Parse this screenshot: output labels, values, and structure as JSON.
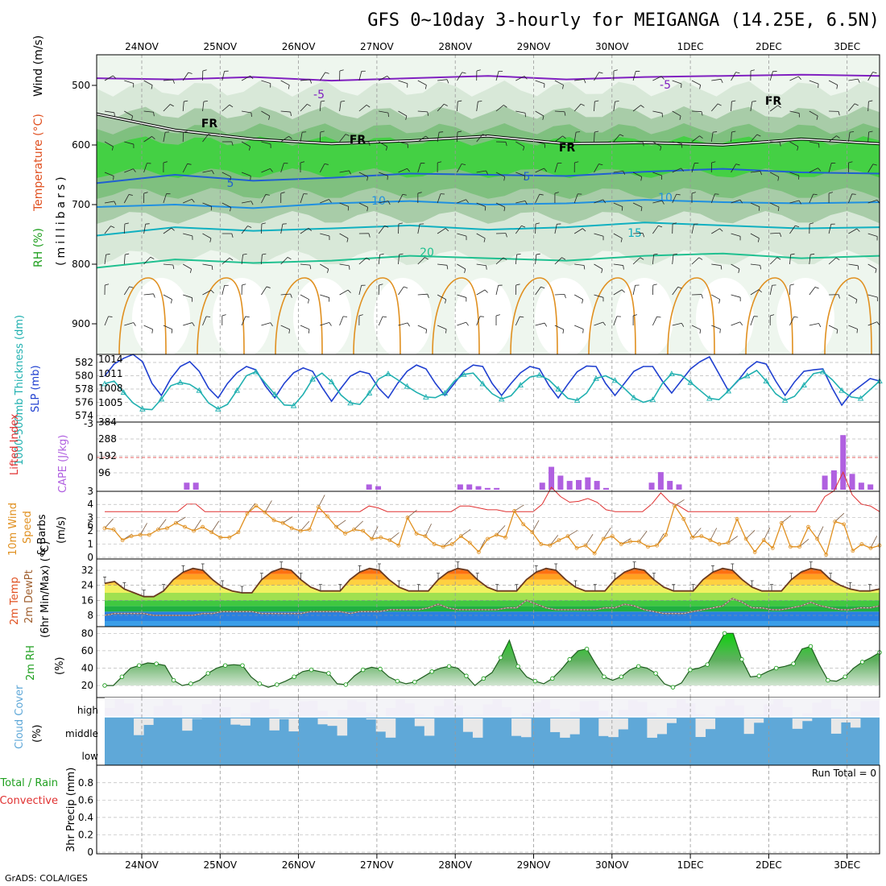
{
  "title": "GFS 0~10day 3-hourly for MEIGANGA (14.25E, 6.5N)",
  "credit": "GrADS: COLA/IGES",
  "date_labels": [
    "24NOV",
    "25NOV",
    "26NOV",
    "27NOV",
    "28NOV",
    "29NOV",
    "30NOV",
    "1DEC",
    "2DEC",
    "3DEC"
  ],
  "colors": {
    "temp": "#e05020",
    "rh": "#20a020",
    "thickness": "#20b0b0",
    "slp": "#2040d0",
    "cape": "#b060e0",
    "wind": "#e09020",
    "cloud": "#5fa8d8",
    "precip_conv": "#e03030"
  },
  "chart_data": [
    {
      "type": "heatmap",
      "name": "upper-air",
      "ylabel_parts": [
        "RH (%)",
        "Temperature (°C)",
        "Wind (m/s)"
      ],
      "ylabel_units": "(millibars)",
      "y_ticks": [
        500,
        600,
        700,
        800,
        900
      ],
      "contour_labels": [
        "-5",
        "-5",
        "5",
        "5",
        "10",
        "10",
        "15",
        "20",
        "FR",
        "FR",
        "FR",
        "FR"
      ],
      "isotherms": [
        {
          "label": "-5",
          "pressure": [
            488,
            490,
            486,
            492,
            488,
            484,
            490,
            486,
            484,
            482,
            484
          ]
        },
        {
          "label": "5",
          "pressure": [
            664,
            650,
            660,
            655,
            648,
            650,
            652,
            645,
            640,
            646,
            648
          ]
        },
        {
          "label": "10",
          "pressure": [
            704,
            700,
            706,
            698,
            694,
            700,
            698,
            692,
            696,
            698,
            696
          ]
        },
        {
          "label": "15",
          "pressure": [
            752,
            738,
            744,
            740,
            735,
            742,
            738,
            730,
            735,
            740,
            738
          ]
        },
        {
          "label": "20",
          "pressure": [
            806,
            792,
            798,
            794,
            786,
            790,
            794,
            786,
            782,
            790,
            786
          ]
        }
      ],
      "freezing_level": [
        548,
        575,
        590,
        598,
        593,
        585,
        598,
        596,
        600,
        590,
        598
      ]
    },
    {
      "type": "line",
      "name": "thickness-slp",
      "ylabel_left": "1000-500mb Thickness (dm)",
      "ylabel_right": "SLP (mb)",
      "y_ticks_left": [
        574,
        576,
        578,
        580,
        582
      ],
      "y_ticks_right": [
        1005,
        1008,
        1011,
        1014
      ],
      "series": [
        {
          "name": "SLP (mb)",
          "values": [
            1010.5,
            1013,
            1014.2,
            1015,
            1013.5,
            1009,
            1006.5,
            1010,
            1012.5,
            1013.5,
            1011.5,
            1008,
            1006,
            1009,
            1011.2,
            1012.5,
            1011.8,
            1008.5,
            1006,
            1009,
            1011.2,
            1012.2,
            1011.5,
            1008.2,
            1005.3,
            1008,
            1010.5,
            1011.5,
            1011,
            1008,
            1006,
            1009,
            1011.5,
            1012.8,
            1012,
            1009,
            1006.5,
            1009,
            1011.5,
            1012.8,
            1012.5,
            1009,
            1006.5,
            1009,
            1011.2,
            1012.5,
            1012,
            1008.6,
            1006,
            1008.8,
            1011.4,
            1012.6,
            1012.5,
            1009,
            1006.5,
            1009,
            1011.5,
            1012.5,
            1012.5,
            1009.5,
            1007,
            1009.5,
            1012,
            1013.5,
            1014.5,
            1011,
            1007.5,
            1009.5,
            1012,
            1013.5,
            1013,
            1009.5,
            1006.5,
            1009.3,
            1011.5,
            1011.8,
            1012,
            1008,
            1004.5,
            1007,
            1008.5,
            1010,
            1009.5
          ]
        },
        {
          "name": "1000-500mb Thickness (dm)",
          "values": [
            578.8,
            579.2,
            577.5,
            575.9,
            575,
            574.9,
            576.5,
            578.5,
            579,
            578.7,
            577.8,
            575.9,
            575,
            575.7,
            577.8,
            580,
            580.6,
            578.9,
            577.2,
            575.6,
            575.5,
            577.2,
            579.5,
            580.4,
            579.1,
            577.1,
            575.9,
            575.7,
            577.4,
            579.5,
            580.3,
            579.4,
            578.4,
            577.5,
            576.8,
            576.7,
            577.4,
            579.2,
            580.2,
            580.4,
            578.8,
            577.3,
            576.5,
            577,
            578.6,
            579.8,
            580.1,
            579.4,
            578,
            576.6,
            576.3,
            577.4,
            579.6,
            580,
            579.3,
            578.1,
            576.7,
            576,
            576.4,
            578.8,
            580.3,
            580.1,
            579,
            577.8,
            576.6,
            576.4,
            577.7,
            579.3,
            580,
            580.8,
            579.2,
            577.3,
            576.3,
            576.9,
            578.6,
            580.3,
            580.6,
            579.4,
            577.8,
            576.8,
            576.6,
            577.9,
            579.2
          ]
        }
      ]
    },
    {
      "type": "bar",
      "name": "lifted-cape",
      "ylabel_left": "Lifted Index",
      "ylabel_right": "CAPE (J/kg)",
      "y_ticks_left": [
        -3,
        0,
        3,
        6
      ],
      "y_ticks_right": [
        96,
        192,
        288,
        384
      ],
      "series": [
        {
          "name": "CAPE (J/kg)",
          "values": [
            0,
            0,
            0,
            0,
            0,
            0,
            0,
            0,
            0,
            40,
            40,
            0,
            0,
            0,
            0,
            0,
            0,
            0,
            0,
            0,
            0,
            0,
            0,
            0,
            0,
            0,
            0,
            0,
            0,
            30,
            20,
            0,
            0,
            0,
            0,
            0,
            0,
            0,
            0,
            30,
            30,
            20,
            10,
            10,
            0,
            0,
            0,
            0,
            40,
            130,
            80,
            50,
            55,
            70,
            50,
            10,
            0,
            0,
            0,
            0,
            40,
            100,
            50,
            30,
            0,
            0,
            0,
            0,
            0,
            0,
            0,
            0,
            0,
            0,
            0,
            0,
            0,
            0,
            0,
            80,
            110,
            310,
            90,
            40,
            30,
            0
          ]
        }
      ]
    },
    {
      "type": "line",
      "name": "wind-10m",
      "ylabel": "10m Wind Speed & Barbs (m/s)",
      "y_ticks": [
        0,
        1,
        2,
        3,
        4
      ],
      "ylim": [
        0,
        4.5
      ],
      "series": [
        {
          "name": "10m Wind Speed",
          "values": [
            2.2,
            2.1,
            1.3,
            1.6,
            1.7,
            1.7,
            2.1,
            2.2,
            2.6,
            2.3,
            2.0,
            2.3,
            1.9,
            1.5,
            1.5,
            1.9,
            3.3,
            3.9,
            3.4,
            2.8,
            2.6,
            2.2,
            2.0,
            2.1,
            3.8,
            3.1,
            2.3,
            1.8,
            2.1,
            2.0,
            1.4,
            1.5,
            1.3,
            0.9,
            3.0,
            1.8,
            1.6,
            1.0,
            0.8,
            1.0,
            1.6,
            1.1,
            0.4,
            1.4,
            1.7,
            1.5,
            3.5,
            2.5,
            1.9,
            1.0,
            0.9,
            1.3,
            1.6,
            0.7,
            0.9,
            0.3,
            1.4,
            1.6,
            1.0,
            1.2,
            1.2,
            0.8,
            0.9,
            1.7,
            3.9,
            2.9,
            1.5,
            1.6,
            1.3,
            1.0,
            1.1,
            2.9,
            1.4,
            0.4,
            1.3,
            0.7,
            2.6,
            0.8,
            0.8,
            2.3,
            1.4,
            0.2,
            2.7,
            2.5,
            0.5,
            1.0,
            0.7,
            0.9
          ]
        }
      ]
    },
    {
      "type": "area",
      "name": "temp-dewpoint",
      "ylabel_parts": [
        "2m Temp",
        "2m DewPt",
        "(6hr Min/Max) (°C)"
      ],
      "y_ticks": [
        8,
        16,
        24,
        32
      ],
      "series": [
        {
          "name": "2m Temp",
          "values": [
            25,
            26,
            22,
            20,
            18,
            18,
            21,
            27,
            31,
            33,
            32,
            27,
            23,
            21,
            20,
            20,
            27,
            31,
            33,
            32,
            27,
            23,
            21,
            21,
            21,
            27,
            31,
            33,
            32,
            27,
            23,
            21,
            21,
            21,
            27,
            31,
            33,
            32,
            27,
            23,
            21,
            21,
            21,
            27,
            31,
            33,
            32,
            27,
            23,
            21,
            21,
            21,
            27,
            31,
            33,
            32,
            27,
            23,
            21,
            21,
            21,
            27,
            31,
            33,
            32,
            27,
            23,
            21,
            21,
            21,
            27,
            31,
            33,
            32,
            27,
            24,
            22,
            21,
            21,
            22
          ]
        },
        {
          "name": "2m DewPt",
          "values": [
            8,
            9,
            9,
            9,
            9,
            8,
            8,
            8,
            8,
            8,
            9,
            9,
            10,
            10,
            10,
            10,
            9,
            9,
            9,
            9,
            9,
            10,
            10,
            10,
            10,
            9,
            10,
            10,
            10,
            11,
            11,
            11,
            11,
            12,
            14,
            12,
            11,
            11,
            11,
            11,
            11,
            12,
            12,
            16,
            14,
            12,
            11,
            11,
            11,
            11,
            11,
            12,
            12,
            14,
            13,
            11,
            10,
            9,
            9,
            9,
            10,
            11,
            12,
            13,
            17,
            15,
            12,
            12,
            11,
            11,
            12,
            13,
            15,
            13,
            12,
            11,
            11,
            12,
            12,
            13
          ]
        }
      ]
    },
    {
      "type": "area",
      "name": "rh-2m",
      "ylabel": "2m RH (%)",
      "y_ticks": [
        20,
        40,
        60,
        80
      ],
      "series": [
        {
          "name": "2m RH",
          "values": [
            20,
            20,
            30,
            40,
            43,
            46,
            45,
            43,
            26,
            20,
            22,
            26,
            34,
            40,
            43,
            44,
            43,
            30,
            22,
            18,
            21,
            25,
            30,
            36,
            38,
            36,
            34,
            22,
            21,
            31,
            38,
            41,
            39,
            30,
            25,
            22,
            24,
            30,
            36,
            40,
            42,
            40,
            31,
            20,
            28,
            35,
            52,
            72,
            42,
            30,
            25,
            22,
            28,
            38,
            50,
            60,
            62,
            45,
            30,
            26,
            30,
            38,
            42,
            40,
            34,
            22,
            18,
            23,
            38,
            40,
            44,
            62,
            80,
            80,
            50,
            30,
            31,
            36,
            40,
            42,
            45,
            62,
            65,
            44,
            26,
            25,
            30,
            40,
            47,
            52,
            58
          ]
        }
      ]
    },
    {
      "type": "heatmap",
      "name": "cloud-cover",
      "ylabel": "Cloud Cover (%)",
      "levels": [
        "high",
        "middle",
        "low"
      ]
    },
    {
      "type": "bar",
      "name": "precip",
      "ylabel": "3hr Precip (mm)",
      "ylabel_side": [
        "Total / Rain",
        "Convective"
      ],
      "y_ticks": [
        0,
        0.2,
        0.4,
        0.6,
        0.8
      ],
      "ylim": [
        0,
        1.0
      ],
      "annotation": "Run Total = 0",
      "series": []
    }
  ]
}
